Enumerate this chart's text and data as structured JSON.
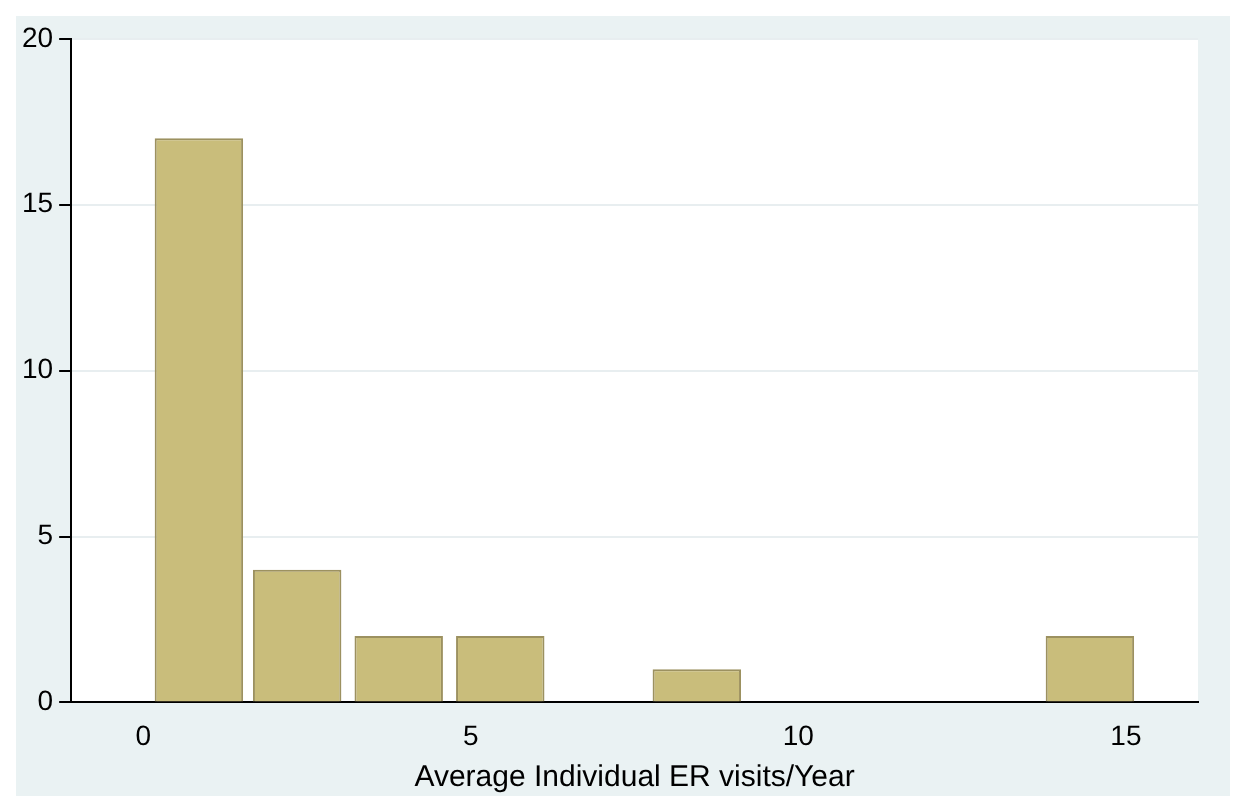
{
  "chart_data": {
    "type": "histogram",
    "xlabel": "Average Individual ER visits/Year",
    "bins": [
      0.1,
      1.6,
      3.1,
      4.7,
      6.2,
      7.7,
      9.2,
      13.7,
      15.2
    ],
    "values": [
      17,
      4,
      2,
      2,
      0,
      1,
      0,
      2
    ],
    "color": "#c9bd7b",
    "xlim": [
      -1.1,
      16.1
    ],
    "xticks": [
      0,
      5,
      10,
      15
    ],
    "ylim": [
      0,
      20
    ],
    "yticks": [
      0,
      5,
      10,
      15,
      20
    ],
    "grid": "y",
    "legend": false
  }
}
